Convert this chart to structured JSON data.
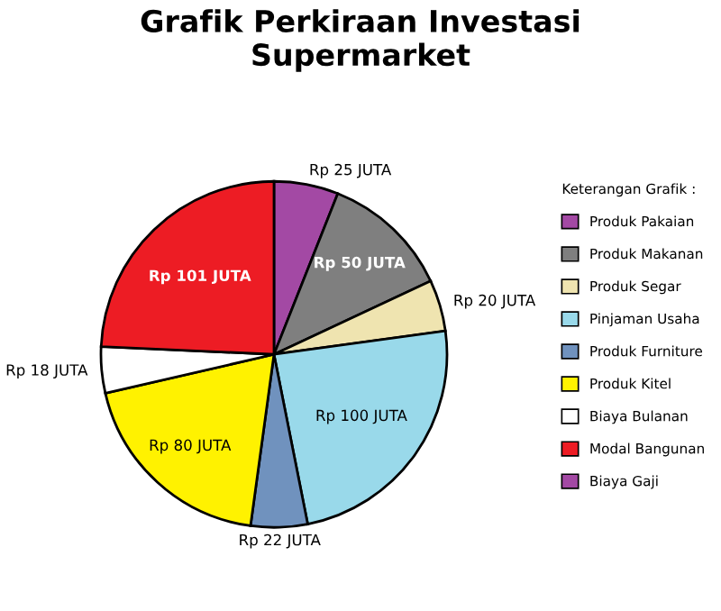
{
  "chart_data": {
    "type": "pie",
    "title": "Grafik Perkiraan Investasi\nSupermarket",
    "categories": [
      "Produk Pakaian",
      "Produk Makanan",
      "Produk Segar",
      "Pinjaman Usaha",
      "Produk Furniture",
      "Produk Kitel",
      "Biaya Bulanan",
      "Modal Bangunan",
      "Biaya Gaji"
    ],
    "values": [
      25,
      50,
      20,
      100,
      22,
      80,
      18,
      101,
      null
    ],
    "colors": [
      "#a349a4",
      "#7f7f7f",
      "#efe4b0",
      "#99d9ea",
      "#7092be",
      "#fff200",
      "#ffffff",
      "#ed1c24",
      "#a349a4"
    ],
    "value_labels": [
      "Rp 25 JUTA",
      "Rp 50 JUTA",
      "Rp 20 JUTA",
      "Rp 100 JUTA",
      "Rp 22 JUTA",
      "Rp 80 JUTA",
      "Rp 18 JUTA",
      "Rp 101 JUTA",
      null
    ],
    "legend": "right",
    "legend_title": "Keterangan Grafik :"
  }
}
